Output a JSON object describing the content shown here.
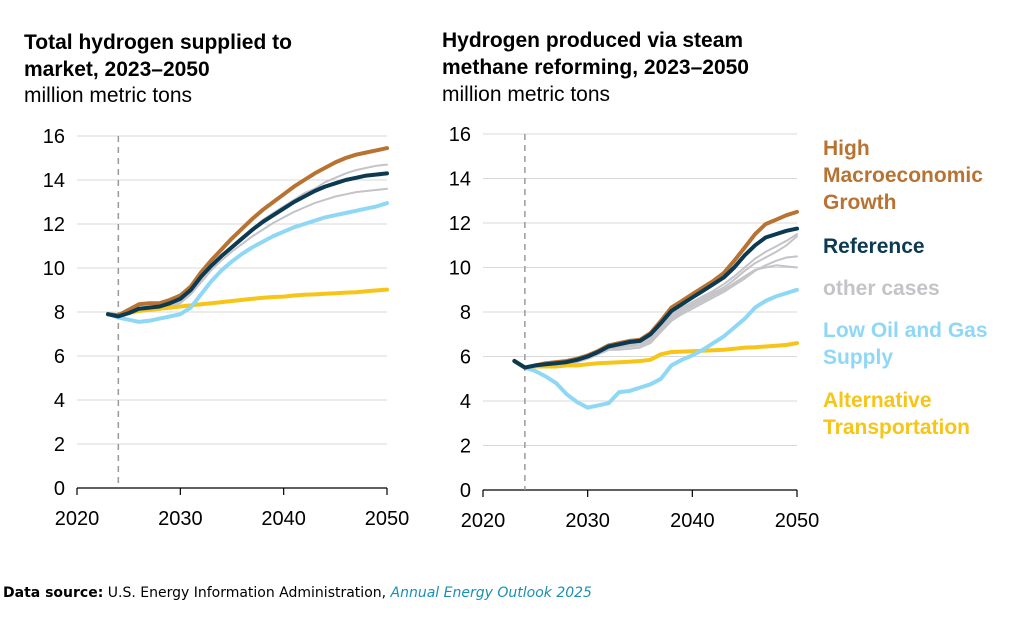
{
  "colors": {
    "high": "#b87333",
    "reference": "#0b3a52",
    "other": "#c4c4c8",
    "lowoil": "#8fd8f5",
    "alt": "#f6c518",
    "grid": "#d9d9d9"
  },
  "legend": {
    "high": "High Macroeconomic Growth",
    "reference": "Reference",
    "other": "other cases",
    "lowoil": "Low Oil and Gas Supply",
    "alt": "Alternative Transportation"
  },
  "footer": {
    "label": "Data source:",
    "text": " U.S. Energy Information Administration, ",
    "link": "Annual Energy Outlook 2025"
  },
  "chart_data": [
    {
      "type": "line",
      "title": "Total hydrogen supplied to market, 2023–2050",
      "ylabel": "million metric tons",
      "xlim": [
        2020,
        2050
      ],
      "ylim": [
        0,
        16
      ],
      "xticks": [
        2020,
        2030,
        2040,
        2050
      ],
      "yticks": [
        0,
        2,
        4,
        6,
        8,
        10,
        12,
        14,
        16
      ],
      "vline": 2024,
      "x": [
        2023,
        2024,
        2025,
        2026,
        2027,
        2028,
        2029,
        2030,
        2031,
        2032,
        2033,
        2034,
        2035,
        2036,
        2037,
        2038,
        2039,
        2040,
        2041,
        2042,
        2043,
        2044,
        2045,
        2046,
        2047,
        2048,
        2049,
        2050
      ],
      "series": [
        {
          "name": "other cases",
          "key": "other",
          "values": [
            7.9,
            7.8,
            7.95,
            8.05,
            8.1,
            8.15,
            8.3,
            8.5,
            8.9,
            9.5,
            10.1,
            10.6,
            11.0,
            11.4,
            11.8,
            12.2,
            12.5,
            12.8,
            13.1,
            13.4,
            13.6,
            13.9,
            14.1,
            14.3,
            14.45,
            14.55,
            14.65,
            14.7
          ]
        },
        {
          "name": "other cases",
          "key": "other",
          "values": [
            7.9,
            7.8,
            7.95,
            8.0,
            8.05,
            8.1,
            8.25,
            8.4,
            8.8,
            9.35,
            9.9,
            10.35,
            10.75,
            11.1,
            11.45,
            11.75,
            12.05,
            12.3,
            12.55,
            12.75,
            12.95,
            13.1,
            13.25,
            13.35,
            13.45,
            13.5,
            13.55,
            13.6
          ]
        },
        {
          "name": "Alternative Transportation",
          "key": "alt",
          "values": [
            7.9,
            7.8,
            7.95,
            8.05,
            8.1,
            8.15,
            8.2,
            8.25,
            8.3,
            8.35,
            8.4,
            8.45,
            8.5,
            8.55,
            8.6,
            8.65,
            8.68,
            8.7,
            8.75,
            8.78,
            8.8,
            8.83,
            8.85,
            8.88,
            8.9,
            8.94,
            8.98,
            9.02
          ]
        },
        {
          "name": "Low Oil and Gas Supply",
          "key": "lowoil",
          "values": [
            7.9,
            7.75,
            7.65,
            7.55,
            7.6,
            7.7,
            7.8,
            7.9,
            8.2,
            8.8,
            9.4,
            9.9,
            10.3,
            10.65,
            10.95,
            11.2,
            11.45,
            11.65,
            11.85,
            12.0,
            12.15,
            12.3,
            12.4,
            12.5,
            12.6,
            12.7,
            12.8,
            12.95
          ]
        },
        {
          "name": "High Macroeconomic Growth",
          "key": "high",
          "values": [
            7.9,
            7.85,
            8.1,
            8.35,
            8.4,
            8.4,
            8.55,
            8.75,
            9.15,
            9.8,
            10.35,
            10.85,
            11.35,
            11.8,
            12.25,
            12.65,
            13.0,
            13.35,
            13.7,
            14.0,
            14.3,
            14.55,
            14.8,
            15.0,
            15.15,
            15.25,
            15.35,
            15.45
          ]
        },
        {
          "name": "Reference",
          "key": "reference",
          "values": [
            7.9,
            7.8,
            7.95,
            8.15,
            8.2,
            8.25,
            8.4,
            8.6,
            9.0,
            9.6,
            10.1,
            10.55,
            10.95,
            11.35,
            11.75,
            12.1,
            12.4,
            12.7,
            13.0,
            13.25,
            13.5,
            13.7,
            13.85,
            14.0,
            14.1,
            14.2,
            14.25,
            14.3
          ]
        }
      ]
    },
    {
      "type": "line",
      "title": "Hydrogen produced via steam methane reforming, 2023–2050",
      "ylabel": "million metric tons",
      "xlim": [
        2020,
        2050
      ],
      "ylim": [
        0,
        16
      ],
      "xticks": [
        2020,
        2030,
        2040,
        2050
      ],
      "yticks": [
        0,
        2,
        4,
        6,
        8,
        10,
        12,
        14,
        16
      ],
      "vline": 2024,
      "x": [
        2023,
        2024,
        2025,
        2026,
        2027,
        2028,
        2029,
        2030,
        2031,
        2032,
        2033,
        2034,
        2035,
        2036,
        2037,
        2038,
        2039,
        2040,
        2041,
        2042,
        2043,
        2044,
        2045,
        2046,
        2047,
        2048,
        2049,
        2050
      ],
      "series": [
        {
          "name": "other cases",
          "key": "other",
          "values": [
            5.8,
            5.5,
            5.55,
            5.6,
            5.6,
            5.65,
            5.75,
            5.9,
            6.1,
            6.3,
            6.4,
            6.5,
            6.5,
            6.7,
            7.2,
            7.7,
            8.0,
            8.25,
            8.5,
            8.75,
            9.0,
            9.3,
            9.6,
            9.9,
            10.0,
            10.1,
            10.05,
            10.0
          ]
        },
        {
          "name": "other cases",
          "key": "other",
          "values": [
            5.8,
            5.5,
            5.55,
            5.6,
            5.65,
            5.7,
            5.8,
            5.95,
            6.15,
            6.35,
            6.4,
            6.45,
            6.5,
            6.8,
            7.3,
            7.8,
            8.1,
            8.35,
            8.6,
            8.85,
            9.1,
            9.45,
            9.85,
            10.2,
            10.45,
            10.7,
            11.0,
            11.4
          ]
        },
        {
          "name": "other cases",
          "key": "other",
          "values": [
            5.8,
            5.5,
            5.55,
            5.6,
            5.65,
            5.7,
            5.8,
            5.95,
            6.15,
            6.35,
            6.45,
            6.55,
            6.6,
            6.9,
            7.4,
            7.9,
            8.2,
            8.45,
            8.7,
            8.95,
            9.25,
            9.6,
            10.0,
            10.4,
            10.7,
            10.95,
            11.2,
            11.5
          ]
        },
        {
          "name": "other cases",
          "key": "other",
          "values": [
            5.8,
            5.5,
            5.55,
            5.6,
            5.6,
            5.65,
            5.75,
            5.9,
            6.1,
            6.3,
            6.3,
            6.35,
            6.4,
            6.6,
            7.1,
            7.6,
            7.9,
            8.15,
            8.4,
            8.65,
            8.9,
            9.2,
            9.5,
            9.85,
            10.1,
            10.3,
            10.45,
            10.5
          ]
        },
        {
          "name": "Alternative Transportation",
          "key": "alt",
          "values": [
            5.8,
            5.5,
            5.55,
            5.55,
            5.55,
            5.6,
            5.6,
            5.65,
            5.7,
            5.72,
            5.74,
            5.76,
            5.8,
            5.85,
            6.1,
            6.2,
            6.22,
            6.24,
            6.26,
            6.28,
            6.3,
            6.35,
            6.4,
            6.42,
            6.45,
            6.48,
            6.52,
            6.6
          ]
        },
        {
          "name": "Low Oil and Gas Supply",
          "key": "lowoil",
          "values": [
            5.8,
            5.5,
            5.35,
            5.1,
            4.8,
            4.3,
            3.95,
            3.7,
            3.8,
            3.9,
            4.4,
            4.45,
            4.6,
            4.75,
            5.0,
            5.6,
            5.85,
            6.05,
            6.3,
            6.6,
            6.9,
            7.3,
            7.7,
            8.2,
            8.5,
            8.7,
            8.85,
            9.0
          ]
        },
        {
          "name": "High Macroeconomic Growth",
          "key": "high",
          "values": [
            5.8,
            5.5,
            5.6,
            5.7,
            5.75,
            5.8,
            5.9,
            6.05,
            6.25,
            6.5,
            6.6,
            6.7,
            6.75,
            7.05,
            7.6,
            8.2,
            8.5,
            8.8,
            9.1,
            9.4,
            9.75,
            10.3,
            10.9,
            11.5,
            11.95,
            12.15,
            12.35,
            12.5
          ]
        },
        {
          "name": "Reference",
          "key": "reference",
          "values": [
            5.8,
            5.5,
            5.6,
            5.65,
            5.7,
            5.75,
            5.85,
            6.0,
            6.2,
            6.45,
            6.55,
            6.65,
            6.7,
            7.0,
            7.5,
            8.05,
            8.35,
            8.65,
            8.95,
            9.25,
            9.55,
            10.0,
            10.55,
            11.0,
            11.35,
            11.5,
            11.65,
            11.75
          ]
        }
      ]
    }
  ]
}
